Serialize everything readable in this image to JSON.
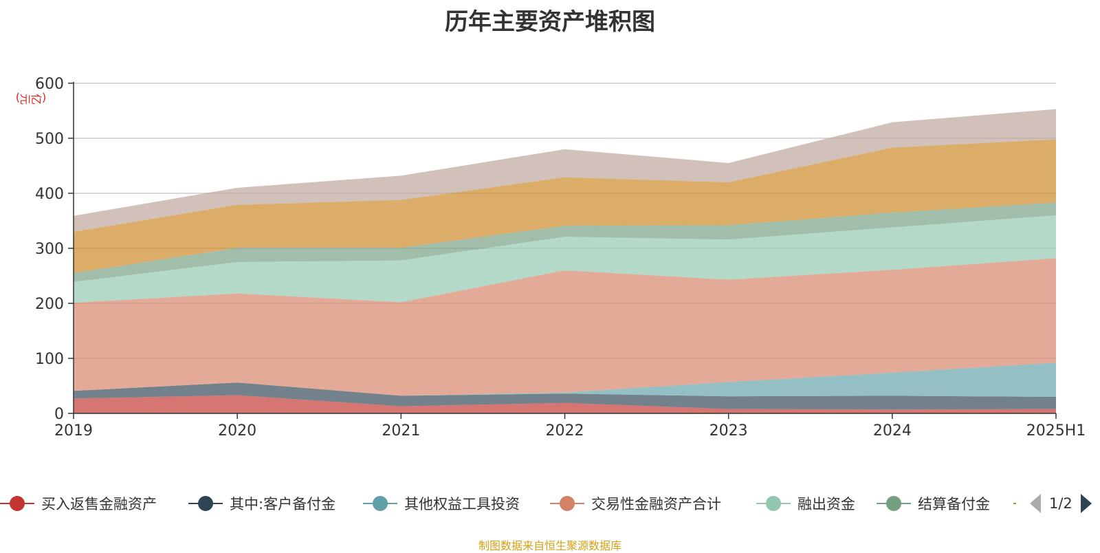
{
  "title": "历年主要资产堆积图",
  "unit_label": "(亿元)",
  "source": "制图数据来自恒生聚源数据库",
  "legend_page": "1/2",
  "chart_data": {
    "type": "area",
    "stacked": true,
    "title": "历年主要资产堆积图",
    "ylabel": "(亿元)",
    "xlabel": "",
    "ylim": [
      0,
      600
    ],
    "yticks": [
      0,
      100,
      200,
      300,
      400,
      500,
      600
    ],
    "grid": true,
    "legend_position": "bottom",
    "categories": [
      "2019",
      "2020",
      "2021",
      "2022",
      "2023",
      "2024",
      "2025H1"
    ],
    "series": [
      {
        "name": "买入返售金融资产",
        "color": "#c23531",
        "values": [
          27,
          33,
          13,
          19,
          8,
          7,
          8
        ]
      },
      {
        "name": "其中:客户备付金",
        "color": "#2f4554",
        "values": [
          14,
          23,
          19,
          17,
          23,
          25,
          22
        ]
      },
      {
        "name": "其他权益工具投资",
        "color": "#61a0a8",
        "values": [
          0,
          0,
          0,
          2,
          26,
          42,
          62
        ]
      },
      {
        "name": "交易性金融资产合计",
        "color": "#d48265",
        "values": [
          160,
          162,
          170,
          222,
          186,
          187,
          190
        ]
      },
      {
        "name": "融出资金",
        "color": "#91c7ae",
        "values": [
          38,
          57,
          76,
          61,
          73,
          77,
          78
        ]
      },
      {
        "name": "结算备付金",
        "color": "#749f83",
        "values": [
          16,
          26,
          23,
          20,
          26,
          27,
          23
        ]
      },
      {
        "name": "",
        "color": "#ca8622",
        "values": [
          75,
          78,
          87,
          88,
          78,
          118,
          115
        ]
      },
      {
        "name": "",
        "color": "#bda29a",
        "values": [
          29,
          31,
          44,
          51,
          35,
          46,
          55
        ]
      }
    ]
  },
  "legend": [
    {
      "label": "买入返售金融资产",
      "color": "#c23531"
    },
    {
      "label": "其中:客户备付金",
      "color": "#2f4554"
    },
    {
      "label": "其他权益工具投资",
      "color": "#61a0a8"
    },
    {
      "label": "交易性金融资产合计",
      "color": "#d48265"
    },
    {
      "label": "融出资金",
      "color": "#91c7ae"
    },
    {
      "label": "结算备付金",
      "color": "#749f83"
    },
    {
      "label": "",
      "color": "#ca8622"
    }
  ]
}
